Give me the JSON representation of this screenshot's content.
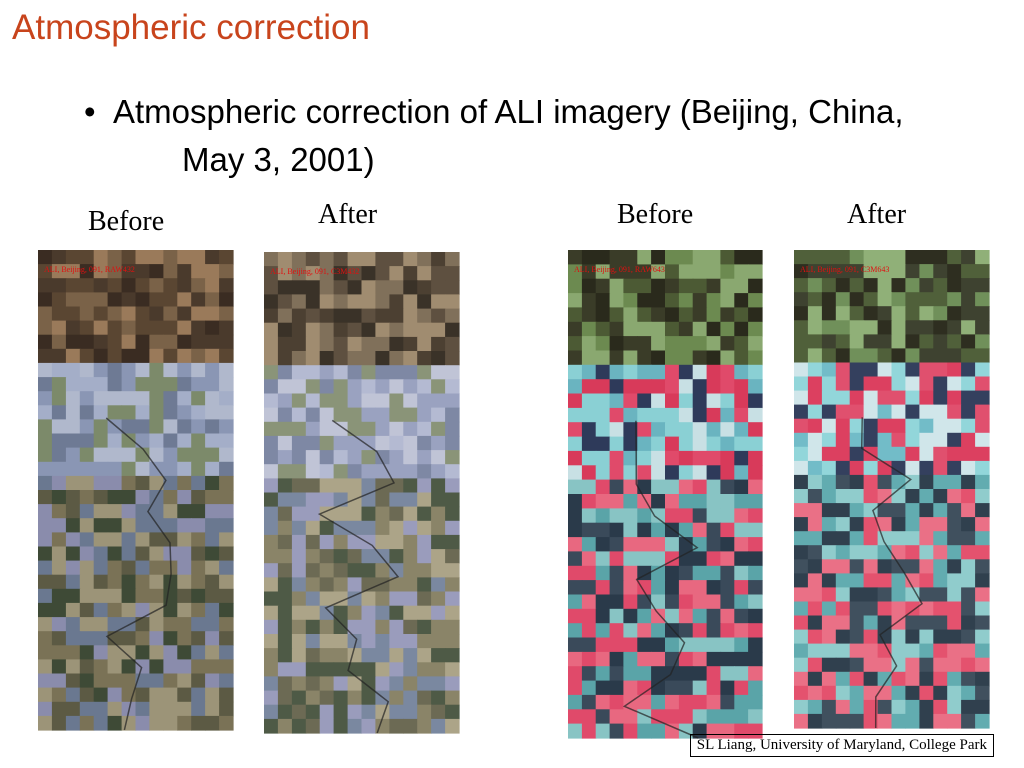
{
  "title": "Atmospheric correction",
  "bullet": "Atmospheric correction of ALI imagery (Beijing, China, May 3, 2001)",
  "panels": [
    {
      "label": "Before",
      "caption": "ALI, Beijing, 091, RAW432"
    },
    {
      "label": "After",
      "caption": "ALI, Beijing, 091, C3M432"
    },
    {
      "label": "Before",
      "caption": "ALI, Beijing, 091, RAW643"
    },
    {
      "label": "After",
      "caption": "ALI, Beijing, 091, C3M643"
    }
  ],
  "footer": "SL Liang, University of Maryland, College Park"
}
